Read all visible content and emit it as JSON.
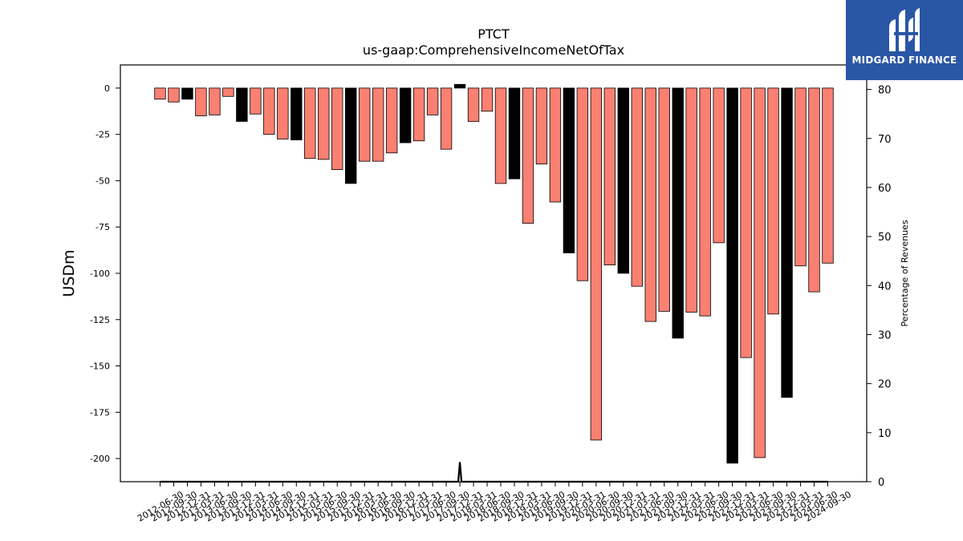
{
  "logo": {
    "text": "MIDGARD FINANCE"
  },
  "chart_data": {
    "type": "bar",
    "title": "PTCT",
    "subtitle": "us-gaap:ComprehensiveIncomeNetOfTax",
    "ylabel": "USDm",
    "y2label": "Percentage of Revenues",
    "ylim": [
      -212.5,
      12.5
    ],
    "y2lim": [
      0,
      85
    ],
    "yticks": [
      0,
      -25,
      -50,
      -75,
      -100,
      -125,
      -150,
      -175,
      -200
    ],
    "y2ticks": [
      0,
      10,
      20,
      30,
      40,
      50,
      60,
      70,
      80
    ],
    "colors": {
      "quarterly": "#fa8072",
      "annual": "#000000"
    },
    "categories": [
      "2012-06-30",
      "2012-09-30",
      "2012-12-31",
      "2013-03-31",
      "2013-06-30",
      "2013-09-30",
      "2013-12-31",
      "2014-03-31",
      "2014-06-30",
      "2014-09-30",
      "2014-12-31",
      "2015-03-31",
      "2015-06-30",
      "2015-09-30",
      "2015-12-31",
      "2016-03-31",
      "2016-06-30",
      "2016-09-30",
      "2016-12-31",
      "2017-03-31",
      "2017-06-30",
      "2017-09-30",
      "2017-12-31",
      "2018-03-31",
      "2018-06-30",
      "2018-09-30",
      "2018-12-31",
      "2019-03-31",
      "2019-06-30",
      "2019-09-30",
      "2019-12-31",
      "2020-03-31",
      "2020-06-30",
      "2020-09-30",
      "2020-12-31",
      "2021-03-31",
      "2021-06-30",
      "2021-09-30",
      "2021-12-31",
      "2022-03-31",
      "2022-06-30",
      "2022-09-30",
      "2022-12-31",
      "2023-03-31",
      "2023-06-30",
      "2023-09-30",
      "2023-12-31",
      "2024-03-31",
      "2024-06-30",
      "2024-09-30"
    ],
    "values": [
      -6,
      -7.5,
      -6,
      -15,
      -14.5,
      -4.5,
      -18,
      -14,
      -25,
      -27.5,
      -28,
      -38,
      -38.5,
      -44,
      -51.5,
      -39.5,
      -39.5,
      -35,
      -29.5,
      -28.5,
      -14.5,
      -33,
      2,
      -18,
      -12.5,
      -51.5,
      -49,
      -73,
      -41,
      -61.5,
      -89,
      -104,
      -190,
      -95.5,
      -100,
      -107,
      -126,
      -120.5,
      -135,
      -121,
      -123,
      -83.5,
      -202.5,
      -145.5,
      -199.5,
      -122,
      -167,
      -96,
      -110,
      -94.5
    ],
    "annual": [
      false,
      false,
      true,
      false,
      false,
      false,
      true,
      false,
      false,
      false,
      true,
      false,
      false,
      false,
      true,
      false,
      false,
      false,
      true,
      false,
      false,
      false,
      true,
      false,
      false,
      false,
      true,
      false,
      false,
      false,
      true,
      false,
      false,
      false,
      true,
      false,
      false,
      false,
      true,
      false,
      false,
      false,
      true,
      false,
      false,
      false,
      true,
      false,
      false,
      false
    ],
    "percentage_line": [
      0,
      0,
      0,
      0,
      0,
      0,
      0,
      0,
      0,
      0,
      0,
      0,
      0,
      0,
      0,
      0,
      0,
      0,
      0,
      0,
      0,
      0,
      4,
      0,
      0,
      0,
      0,
      0,
      0,
      0,
      0,
      0,
      0,
      0,
      0,
      0,
      0,
      0,
      0,
      0,
      0,
      0,
      0,
      0,
      0,
      0,
      0,
      0,
      0,
      0
    ],
    "grid": false,
    "legend": "none"
  }
}
